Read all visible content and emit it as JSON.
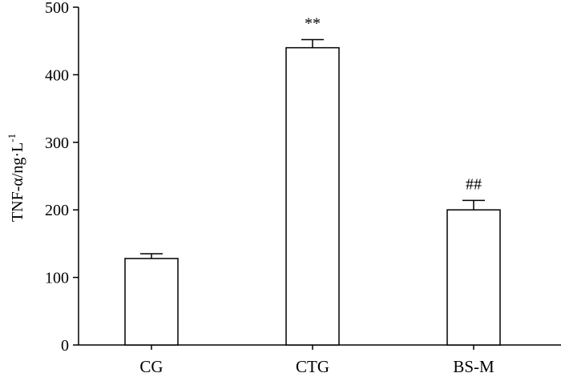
{
  "chart_data": {
    "type": "bar",
    "ylabel": "TNF-α/ng·L",
    "ylabel_superscript": "-1",
    "categories": [
      "CG",
      "CTG",
      "BS-M"
    ],
    "values": [
      128,
      440,
      200
    ],
    "errors": [
      7,
      12,
      14
    ],
    "annotations": [
      "",
      "**",
      "##"
    ],
    "ylim": [
      0,
      500
    ],
    "yticks": [
      0,
      100,
      200,
      300,
      400,
      500
    ],
    "ytick_labels": [
      "0",
      "100",
      "200",
      "300",
      "400",
      "500"
    ],
    "grid": false,
    "bar_fill": "#ffffff",
    "bar_stroke": "#000000"
  }
}
